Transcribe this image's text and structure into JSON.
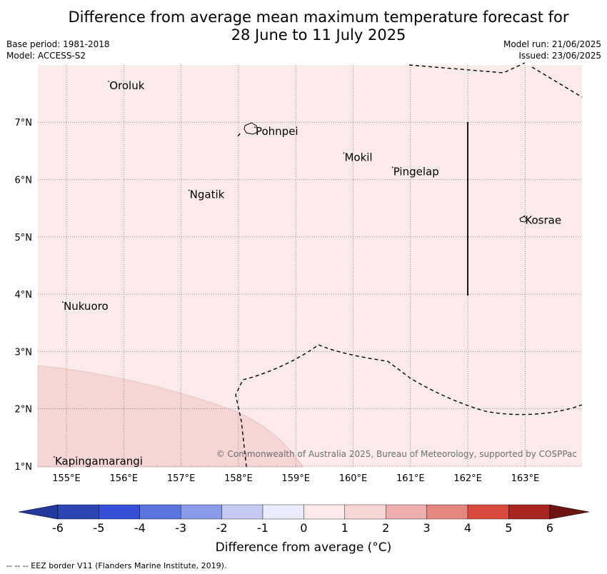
{
  "title_line1": "Difference from average mean maximum temperature forecast for",
  "title_line2": "28 June to 11 July 2025",
  "base_period": "Base period: 1981-2018",
  "model": "Model: ACCESS-S2",
  "model_run": "Model run: 21/06/2025",
  "issued": "Issued: 23/06/2025",
  "copyright": "© Commonwealth of Australia 2025, Bureau of Meteorology, supported by COSPPac",
  "colorbar_label": "Difference from average (°C)",
  "footer": "--  --  -- EEZ border V11 (Flanders Marine Institute, 2019).",
  "lon_labels": [
    "155°E",
    "156°E",
    "157°E",
    "158°E",
    "159°E",
    "160°E",
    "161°E",
    "162°E",
    "163°E"
  ],
  "lat_labels": [
    "1°N",
    "2°N",
    "3°N",
    "4°N",
    "5°N",
    "6°N",
    "7°N"
  ],
  "places": [
    {
      "name": "Oroluk",
      "lon": 155.75,
      "lat": 7.65
    },
    {
      "name": "Pohnpei",
      "lon": 158.3,
      "lat": 6.85
    },
    {
      "name": "Mokil",
      "lon": 159.85,
      "lat": 6.4
    },
    {
      "name": "Pingelap",
      "lon": 160.7,
      "lat": 6.15
    },
    {
      "name": "Ngatik",
      "lon": 157.15,
      "lat": 5.75
    },
    {
      "name": "Kosrae",
      "lon": 163.0,
      "lat": 5.3
    },
    {
      "name": "Nukuoro",
      "lon": 154.95,
      "lat": 3.8
    },
    {
      "name": "Kapingamarangi",
      "lon": 154.8,
      "lat": 1.1
    }
  ],
  "colorbar": {
    "ticks": [
      "-6",
      "-5",
      "-4",
      "-3",
      "-2",
      "-1",
      "0",
      "1",
      "2",
      "3",
      "4",
      "5",
      "6"
    ],
    "colors": [
      "#23399e",
      "#2b45b3",
      "#354fd6",
      "#5b75e0",
      "#8a9be9",
      "#c4caf4",
      "#ebecfb",
      "#fdeaea",
      "#f6d5d5",
      "#eeb0ae",
      "#e58680",
      "#d9493d",
      "#a8261f",
      "#6e1512"
    ]
  },
  "field_colors": {
    "background": "#fbeaea",
    "warm": "#f6d5d5"
  }
}
